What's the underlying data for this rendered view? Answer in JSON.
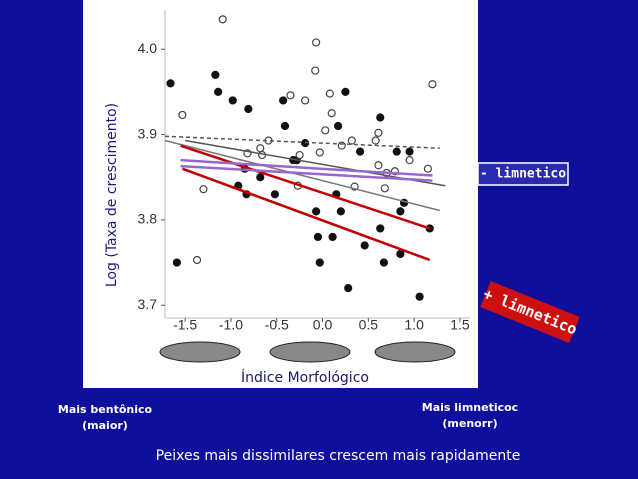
{
  "chart_data": {
    "type": "scatter",
    "ylabel": "Log (Taxa de crescimento)",
    "xlabel": "Índice Morfológico",
    "xlim": [
      -1.72,
      1.61
    ],
    "ylim": [
      3.685,
      4.046
    ],
    "xticks": [
      -1.5,
      {
        "value": -1,
        "label": "-1.0"
      },
      -0.5,
      {
        "value": 0,
        "label": "0.0"
      },
      0.5,
      {
        "value": 1,
        "label": "1.0"
      },
      1.5
    ],
    "yticks": [
      3.7,
      3.8,
      3.9,
      {
        "value": 4,
        "label": "4.0"
      }
    ],
    "series": [
      {
        "color": "#111111",
        "filled": true,
        "x": [
          -1.66,
          -1.59,
          -1.17,
          -1.14,
          -0.98,
          -0.81,
          -0.92,
          -0.83,
          -0.85,
          -0.68,
          -0.52,
          -0.43,
          -0.41,
          -0.32,
          -0.28,
          -0.19,
          -0.07,
          -0.05,
          -0.03,
          0.11,
          0.15,
          0.17,
          0.2,
          0.25,
          0.28,
          0.41,
          0.46,
          0.63,
          0.63,
          0.67,
          0.81,
          0.85,
          0.89,
          0.85,
          0.95,
          1.06,
          1.17
        ],
        "values": [
          3.96,
          3.75,
          3.97,
          3.95,
          3.94,
          3.93,
          3.84,
          3.83,
          3.86,
          3.85,
          3.83,
          3.94,
          3.91,
          3.87,
          3.87,
          3.89,
          3.81,
          3.78,
          3.75,
          3.78,
          3.83,
          3.91,
          3.81,
          3.95,
          3.72,
          3.88,
          3.77,
          3.92,
          3.79,
          3.75,
          3.88,
          3.81,
          3.82,
          3.76,
          3.88,
          3.71,
          3.79
        ]
      },
      {
        "color": "#444444",
        "filled": false,
        "x": [
          -1.09,
          -0.07,
          -0.08,
          -1.53,
          -1.3,
          -1.37,
          -0.66,
          -0.59,
          -0.35,
          -0.19,
          -0.27,
          -0.25,
          -0.03,
          0.03,
          0.08,
          0.1,
          0.21,
          0.32,
          0.35,
          0.58,
          0.61,
          0.68,
          0.61,
          0.7,
          0.79,
          0.95,
          1.15,
          1.2,
          -0.68,
          -0.82
        ],
        "values": [
          4.035,
          4.008,
          3.975,
          3.923,
          3.836,
          3.753,
          3.876,
          3.893,
          3.946,
          3.94,
          3.84,
          3.876,
          3.879,
          3.905,
          3.948,
          3.925,
          3.887,
          3.893,
          3.839,
          3.893,
          3.902,
          3.837,
          3.864,
          3.855,
          3.857,
          3.87,
          3.86,
          3.959,
          3.884,
          3.878
        ]
      }
    ],
    "trend_lines": [
      {
        "color": "#555555",
        "dashed": true,
        "x": [
          -1.72,
          1.28
        ],
        "values": [
          3.898,
          3.884
        ]
      },
      {
        "color": "#777777",
        "dashed": false,
        "x": [
          -1.72,
          1.28
        ],
        "values": [
          3.893,
          3.811
        ]
      },
      {
        "color": "#555555",
        "dashed": false,
        "x": [
          -1.5,
          1.34
        ],
        "values": [
          3.893,
          3.84
        ]
      },
      {
        "color": "#c00000",
        "dashed": false,
        "x": [
          -1.55,
          1.17
        ],
        "values": [
          3.887,
          3.79
        ]
      },
      {
        "color": "#c00000",
        "dashed": false,
        "x": [
          -1.53,
          1.17
        ],
        "values": [
          3.86,
          3.753
        ]
      },
      {
        "color": "#9966cc",
        "dashed": false,
        "x": [
          -1.55,
          1.2
        ],
        "values": [
          3.87,
          3.852
        ]
      },
      {
        "color": "#9966cc",
        "dashed": false,
        "x": [
          -1.55,
          1.2
        ],
        "values": [
          3.863,
          3.846
        ]
      }
    ]
  },
  "annotations": {
    "minus": "- limnetico",
    "plus": "+ limnetico",
    "left": [
      "Mais bentônico",
      "(maior)"
    ],
    "right": [
      "Mais limneticoc",
      "(menorr)"
    ],
    "caption": "Peixes mais dissimilares crescem mais rapidamente"
  }
}
